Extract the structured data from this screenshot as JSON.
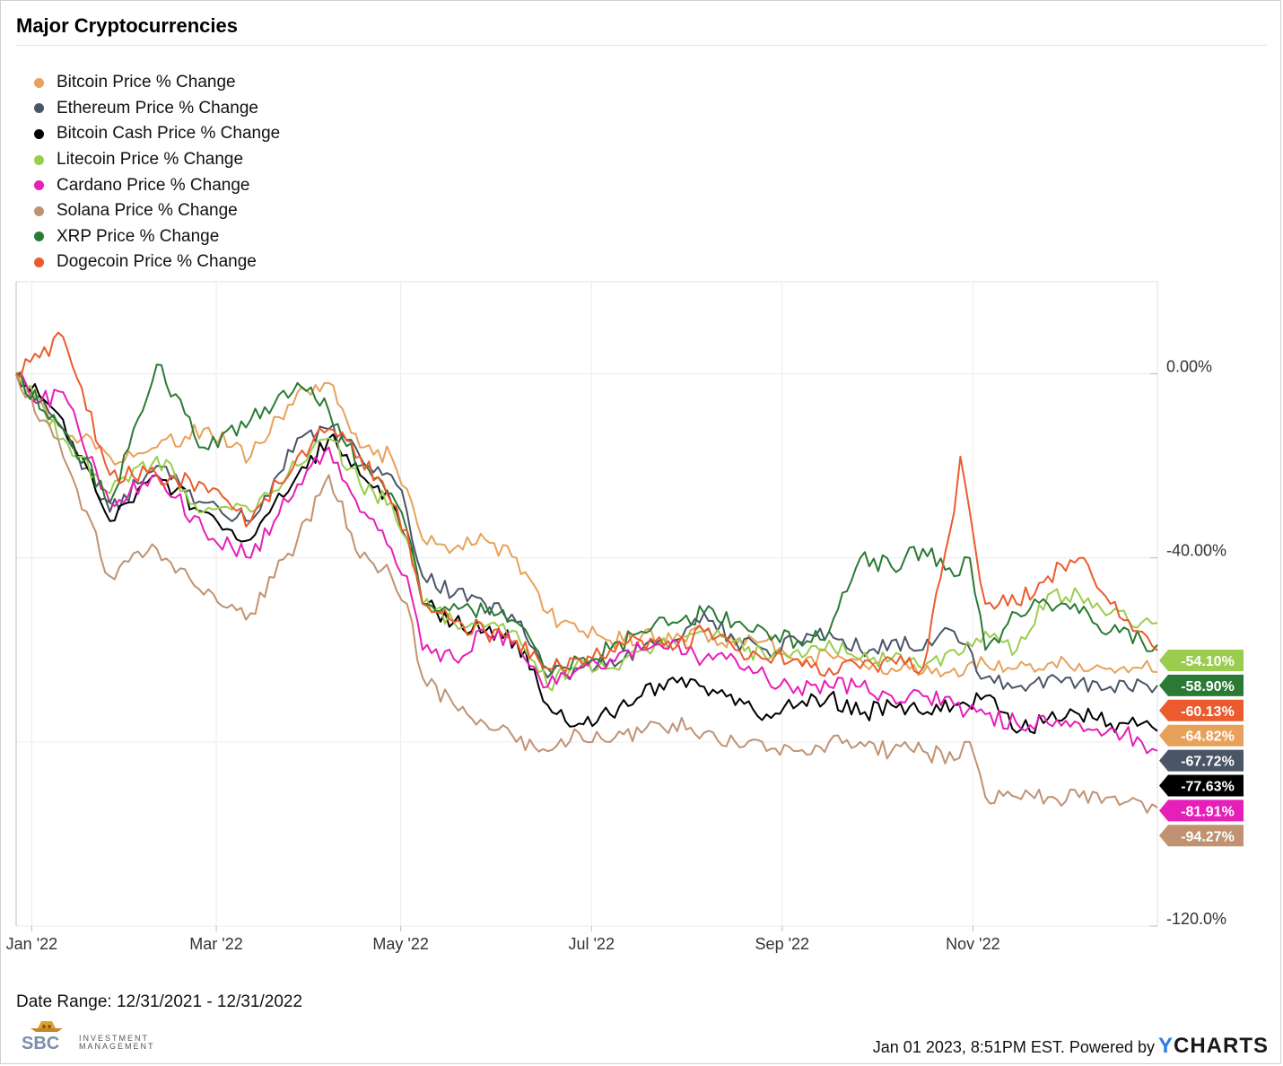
{
  "title": "Major Cryptocurrencies",
  "date_range": "Date Range: 12/31/2021 - 12/31/2022",
  "footer": {
    "timestamp": "Jan 01 2023, 8:51PM EST. Powered by",
    "brand_y": "Y",
    "brand_rest": "CHARTS"
  },
  "logo": {
    "mark": "SBC",
    "line1": "INVESTMENT",
    "line2": "MANAGEMENT"
  },
  "chart_data": {
    "type": "line",
    "title": "Major Cryptocurrencies",
    "xlabel": "",
    "ylabel": "",
    "ylim": [
      -120,
      20
    ],
    "yticks": [
      0,
      -40,
      -120
    ],
    "ytick_labels": [
      "0.00%",
      "-40.00%",
      "-120.0%"
    ],
    "xticks": [
      "Jan '22",
      "Mar '22",
      "May '22",
      "Jul '22",
      "Sep '22",
      "Nov '22"
    ],
    "xtick_days": [
      5,
      64,
      123,
      184,
      245,
      306
    ],
    "x_unit": "days since Dec 31 2021",
    "grid": true,
    "legend_position": "top-left",
    "series": [
      {
        "name": "Bitcoin Price % Change",
        "color": "#e8a15a",
        "end_label": "-64.82%",
        "x": [
          0,
          15,
          30,
          45,
          60,
          75,
          90,
          100,
          110,
          120,
          125,
          130,
          140,
          150,
          160,
          170,
          180,
          190,
          200,
          210,
          220,
          230,
          240,
          250,
          260,
          270,
          280,
          290,
          300,
          310,
          320,
          330,
          340,
          350,
          360,
          365
        ],
        "y": [
          0,
          -12,
          -18,
          -16,
          -12,
          -18,
          -4,
          -2,
          -16,
          -18,
          -25,
          -36,
          -38,
          -36,
          -40,
          -52,
          -56,
          -58,
          -57,
          -58,
          -56,
          -59,
          -58,
          -62,
          -61,
          -62,
          -64,
          -65,
          -64,
          -63,
          -64,
          -63,
          -63,
          -64,
          -64,
          -64.82
        ]
      },
      {
        "name": "Ethereum Price % Change",
        "color": "#4a5566",
        "end_label": "-67.72%",
        "x": [
          0,
          15,
          30,
          45,
          60,
          75,
          90,
          100,
          110,
          120,
          125,
          130,
          140,
          150,
          160,
          170,
          180,
          190,
          200,
          210,
          220,
          230,
          240,
          250,
          260,
          270,
          280,
          290,
          300,
          310,
          320,
          330,
          340,
          350,
          360,
          365
        ],
        "y": [
          0,
          -12,
          -30,
          -20,
          -28,
          -32,
          -14,
          -12,
          -18,
          -22,
          -30,
          -44,
          -48,
          -50,
          -54,
          -66,
          -64,
          -62,
          -60,
          -58,
          -52,
          -58,
          -60,
          -58,
          -56,
          -60,
          -58,
          -60,
          -56,
          -66,
          -68,
          -66,
          -67,
          -68,
          -67,
          -67.72
        ]
      },
      {
        "name": "Bitcoin Cash Price % Change",
        "color": "#000000",
        "end_label": "-77.63%",
        "x": [
          0,
          15,
          30,
          45,
          60,
          75,
          90,
          100,
          110,
          120,
          125,
          130,
          140,
          150,
          160,
          170,
          180,
          190,
          200,
          210,
          220,
          230,
          240,
          250,
          260,
          270,
          280,
          290,
          300,
          310,
          320,
          330,
          340,
          350,
          360,
          365
        ],
        "y": [
          0,
          -10,
          -32,
          -22,
          -30,
          -36,
          -22,
          -14,
          -22,
          -28,
          -36,
          -50,
          -54,
          -56,
          -58,
          -72,
          -76,
          -74,
          -70,
          -66,
          -68,
          -72,
          -74,
          -72,
          -70,
          -74,
          -72,
          -74,
          -72,
          -70,
          -78,
          -75,
          -74,
          -76,
          -76,
          -77.63
        ]
      },
      {
        "name": "Litecoin Price % Change",
        "color": "#9acd4e",
        "end_label": "-54.10%",
        "x": [
          0,
          15,
          30,
          45,
          60,
          75,
          90,
          100,
          110,
          120,
          125,
          130,
          140,
          150,
          160,
          170,
          180,
          190,
          200,
          210,
          220,
          230,
          240,
          250,
          260,
          270,
          280,
          290,
          300,
          310,
          320,
          330,
          340,
          350,
          360,
          365
        ],
        "y": [
          0,
          -14,
          -26,
          -18,
          -30,
          -30,
          -20,
          -14,
          -24,
          -28,
          -36,
          -50,
          -54,
          -55,
          -56,
          -68,
          -62,
          -64,
          -60,
          -58,
          -56,
          -58,
          -62,
          -60,
          -58,
          -62,
          -62,
          -64,
          -60,
          -56,
          -60,
          -48,
          -48,
          -52,
          -54,
          -54.1
        ]
      },
      {
        "name": "Cardano Price % Change",
        "color": "#e61fb8",
        "end_label": "-81.91%",
        "x": [
          0,
          8,
          15,
          20,
          30,
          45,
          60,
          75,
          90,
          100,
          110,
          120,
          125,
          130,
          140,
          150,
          160,
          170,
          180,
          190,
          200,
          210,
          220,
          230,
          240,
          250,
          260,
          270,
          280,
          290,
          300,
          310,
          320,
          330,
          340,
          350,
          360,
          365
        ],
        "y": [
          0,
          -6,
          -4,
          -12,
          -28,
          -22,
          -34,
          -40,
          -24,
          -16,
          -30,
          -38,
          -44,
          -60,
          -62,
          -56,
          -58,
          -68,
          -64,
          -62,
          -60,
          -58,
          -62,
          -62,
          -66,
          -68,
          -68,
          -68,
          -70,
          -70,
          -72,
          -74,
          -76,
          -76,
          -76,
          -77,
          -80,
          -81.91
        ]
      },
      {
        "name": "Solana Price % Change",
        "color": "#c09272",
        "end_label": "-94.27%",
        "x": [
          0,
          15,
          30,
          45,
          60,
          75,
          90,
          100,
          110,
          120,
          125,
          130,
          140,
          150,
          160,
          170,
          180,
          190,
          200,
          210,
          220,
          230,
          240,
          250,
          260,
          270,
          280,
          290,
          300,
          305,
          310,
          320,
          330,
          340,
          350,
          360,
          365
        ],
        "y": [
          0,
          -18,
          -44,
          -38,
          -48,
          -52,
          -36,
          -22,
          -40,
          -44,
          -50,
          -66,
          -72,
          -76,
          -80,
          -82,
          -78,
          -80,
          -78,
          -76,
          -78,
          -80,
          -82,
          -82,
          -80,
          -80,
          -82,
          -82,
          -84,
          -80,
          -92,
          -92,
          -92,
          -92,
          -92,
          -93,
          -94.27
        ]
      },
      {
        "name": "XRP Price % Change",
        "color": "#2a7a35",
        "end_label": "-58.90%",
        "x": [
          0,
          15,
          30,
          45,
          60,
          75,
          90,
          100,
          110,
          120,
          125,
          130,
          140,
          150,
          160,
          170,
          180,
          190,
          200,
          210,
          220,
          230,
          240,
          250,
          260,
          270,
          280,
          290,
          300,
          305,
          310,
          320,
          330,
          340,
          350,
          360,
          365
        ],
        "y": [
          0,
          -12,
          -28,
          2,
          -16,
          -10,
          -2,
          -8,
          -20,
          -26,
          -34,
          -50,
          -50,
          -52,
          -54,
          -64,
          -62,
          -60,
          -56,
          -54,
          -52,
          -54,
          -56,
          -58,
          -56,
          -40,
          -42,
          -38,
          -44,
          -40,
          -60,
          -52,
          -50,
          -52,
          -56,
          -58,
          -58.9
        ]
      },
      {
        "name": "Dogecoin Price % Change",
        "color": "#ec5b2e",
        "end_label": "-60.13%",
        "x": [
          0,
          15,
          30,
          45,
          60,
          75,
          90,
          100,
          110,
          120,
          125,
          130,
          140,
          150,
          160,
          170,
          180,
          190,
          200,
          210,
          220,
          230,
          240,
          250,
          260,
          270,
          280,
          290,
          300,
          302,
          305,
          310,
          320,
          330,
          340,
          350,
          360,
          365
        ],
        "y": [
          0,
          8,
          -22,
          -22,
          -24,
          -32,
          -18,
          -12,
          -18,
          -28,
          -34,
          -50,
          -54,
          -56,
          -58,
          -64,
          -62,
          -60,
          -58,
          -60,
          -56,
          -60,
          -62,
          -62,
          -64,
          -64,
          -62,
          -64,
          -30,
          -18,
          -30,
          -50,
          -50,
          -44,
          -40,
          -50,
          -56,
          -60.13
        ]
      }
    ]
  }
}
